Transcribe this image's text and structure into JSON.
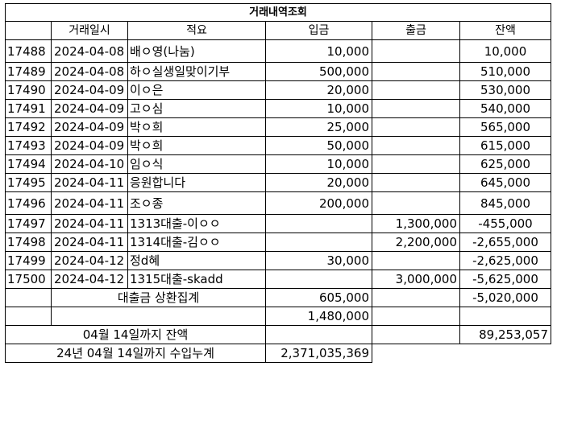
{
  "title": "거래내역조회",
  "headers": {
    "date": "거래일시",
    "memo": "적요",
    "deposit": "입금",
    "withdrawal": "출금",
    "balance": "잔액"
  },
  "rows": [
    {
      "no": "17488",
      "date": "2024-04-08",
      "memo": "배ㅇ영(나눔)",
      "deposit": "10,000",
      "withdrawal": "",
      "balance": "10,000"
    },
    {
      "no": "17489",
      "date": "2024-04-08",
      "memo": "하ㅇ실생일맞이기부",
      "deposit": "500,000",
      "withdrawal": "",
      "balance": "510,000"
    },
    {
      "no": "17490",
      "date": "2024-04-09",
      "memo": "이ㅇ은",
      "deposit": "20,000",
      "withdrawal": "",
      "balance": "530,000"
    },
    {
      "no": "17491",
      "date": "2024-04-09",
      "memo": "고ㅇ심",
      "deposit": "10,000",
      "withdrawal": "",
      "balance": "540,000"
    },
    {
      "no": "17492",
      "date": "2024-04-09",
      "memo": "박ㅇ희",
      "deposit": "25,000",
      "withdrawal": "",
      "balance": "565,000"
    },
    {
      "no": "17493",
      "date": "2024-04-09",
      "memo": "박ㅇ희",
      "deposit": "50,000",
      "withdrawal": "",
      "balance": "615,000"
    },
    {
      "no": "17494",
      "date": "2024-04-10",
      "memo": "임ㅇ식",
      "deposit": "10,000",
      "withdrawal": "",
      "balance": "625,000"
    },
    {
      "no": "17495",
      "date": "2024-04-11",
      "memo": "응원합니다",
      "deposit": "20,000",
      "withdrawal": "",
      "balance": "645,000"
    },
    {
      "no": "17496",
      "date": "2024-04-11",
      "memo": "조ㅇ종",
      "deposit": "200,000",
      "withdrawal": "",
      "balance": "845,000"
    },
    {
      "no": "17497",
      "date": "2024-04-11",
      "memo": "1313대출-이ㅇㅇ",
      "deposit": "",
      "withdrawal": "1,300,000",
      "balance": "-455,000"
    },
    {
      "no": "17498",
      "date": "2024-04-11",
      "memo": "1314대출-김ㅇㅇ",
      "deposit": "",
      "withdrawal": "2,200,000",
      "balance": "-2,655,000"
    },
    {
      "no": "17499",
      "date": "2024-04-12",
      "memo": "정d혜",
      "deposit": "30,000",
      "withdrawal": "",
      "balance": "-2,625,000"
    },
    {
      "no": "17500",
      "date": "2024-04-12",
      "memo": "1315대출-skadd",
      "deposit": "",
      "withdrawal": "3,000,000",
      "balance": "-5,625,000"
    }
  ],
  "summary": {
    "loan_label": "대출금 상환집계",
    "loan_deposit": "605,000",
    "loan_balance": "-5,020,000",
    "subtotal_deposit": "1,480,000",
    "balance_label": "04월 14일까지 잔액",
    "balance_value": "89,253,057",
    "cumulative_label": "24년 04월 14일까지 수입누계",
    "cumulative_value": "2,371,035,369"
  }
}
